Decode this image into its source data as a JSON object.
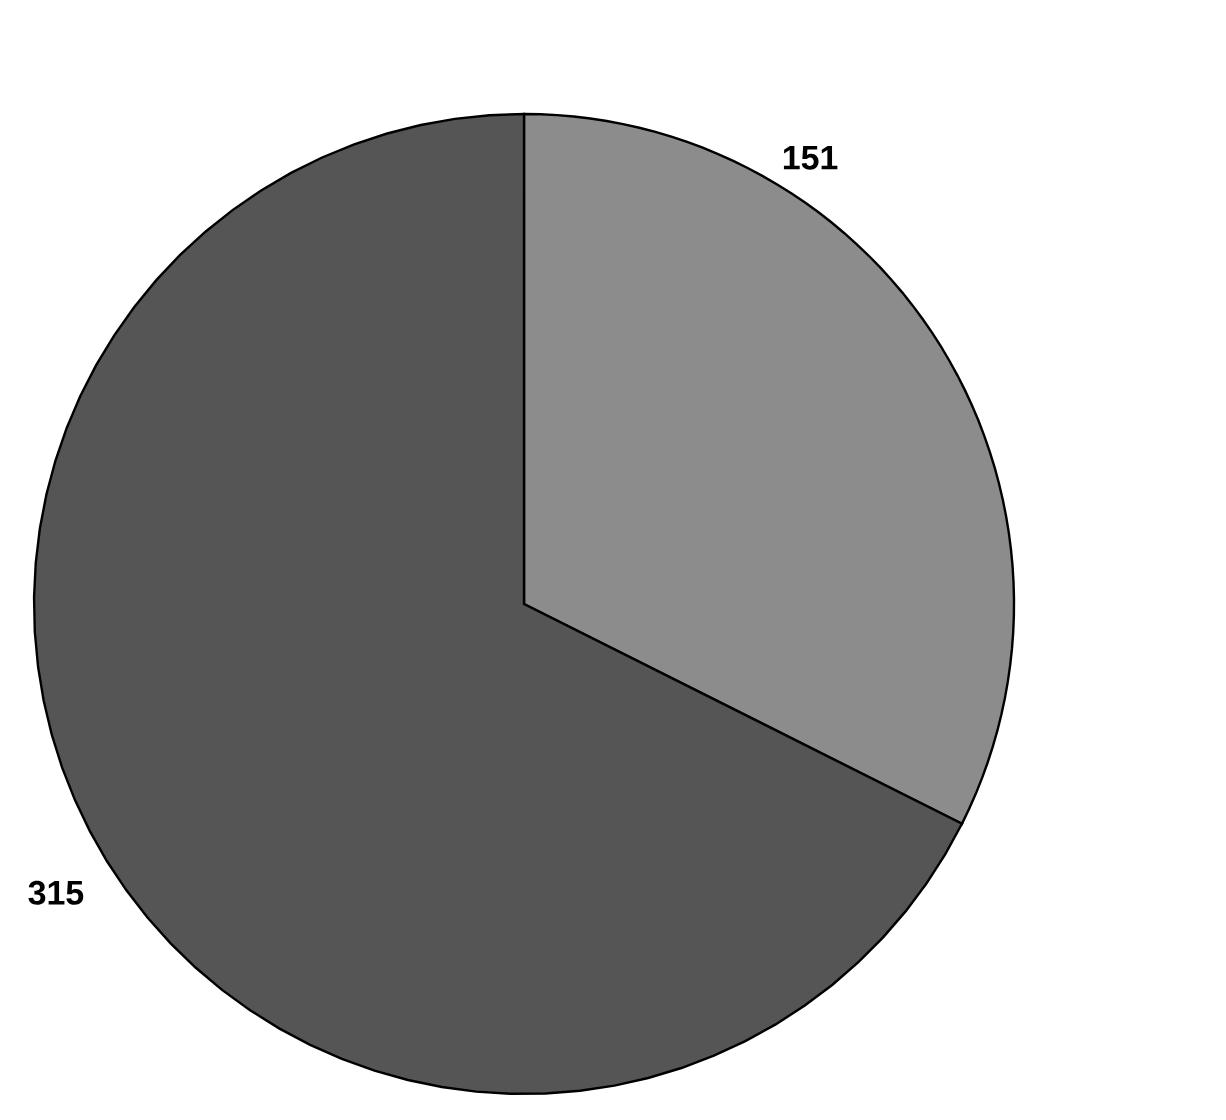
{
  "chart_data": {
    "type": "pie",
    "categories": [
      null,
      null
    ],
    "values": [
      151,
      315
    ],
    "colors": [
      "#8c8c8c",
      "#555555"
    ],
    "data_labels": true
  }
}
